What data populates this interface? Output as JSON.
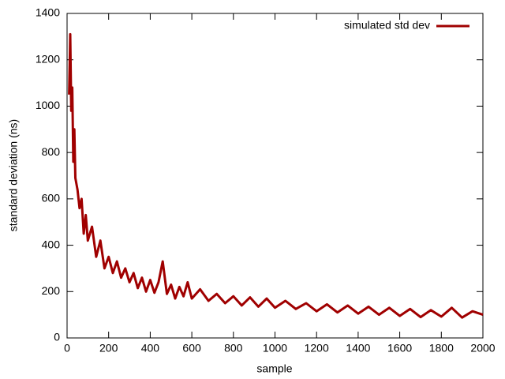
{
  "chart_data": {
    "type": "line",
    "xlabel": "sample",
    "ylabel": "standard deviation (ns)",
    "x": [
      10,
      15,
      20,
      25,
      30,
      35,
      40,
      50,
      60,
      70,
      80,
      90,
      100,
      120,
      140,
      160,
      180,
      200,
      220,
      240,
      260,
      280,
      300,
      320,
      340,
      360,
      380,
      400,
      420,
      440,
      460,
      480,
      500,
      520,
      540,
      560,
      580,
      600,
      640,
      680,
      720,
      760,
      800,
      840,
      880,
      920,
      960,
      1000,
      1050,
      1100,
      1150,
      1200,
      1250,
      1300,
      1350,
      1400,
      1450,
      1500,
      1550,
      1600,
      1650,
      1700,
      1750,
      1800,
      1850,
      1900,
      1950,
      2000
    ],
    "series": [
      {
        "name": "simulated std dev",
        "color": "#a00000",
        "values": [
          1050,
          1310,
          980,
          1080,
          760,
          900,
          690,
          640,
          560,
          600,
          450,
          530,
          420,
          480,
          350,
          420,
          300,
          350,
          280,
          330,
          260,
          300,
          240,
          280,
          215,
          260,
          200,
          250,
          195,
          240,
          330,
          190,
          230,
          170,
          220,
          180,
          240,
          170,
          210,
          160,
          190,
          150,
          180,
          140,
          175,
          135,
          170,
          130,
          160,
          125,
          150,
          115,
          145,
          110,
          140,
          105,
          135,
          100,
          130,
          95,
          125,
          90,
          120,
          92,
          130,
          88,
          115,
          100
        ]
      }
    ],
    "xlim": [
      0,
      2000
    ],
    "xticks": [
      0,
      200,
      400,
      600,
      800,
      1000,
      1200,
      1400,
      1600,
      1800,
      2000
    ],
    "ylim": [
      0,
      1400
    ],
    "yticks": [
      0,
      200,
      400,
      600,
      800,
      1000,
      1200,
      1400
    ],
    "legend": "upper right"
  }
}
